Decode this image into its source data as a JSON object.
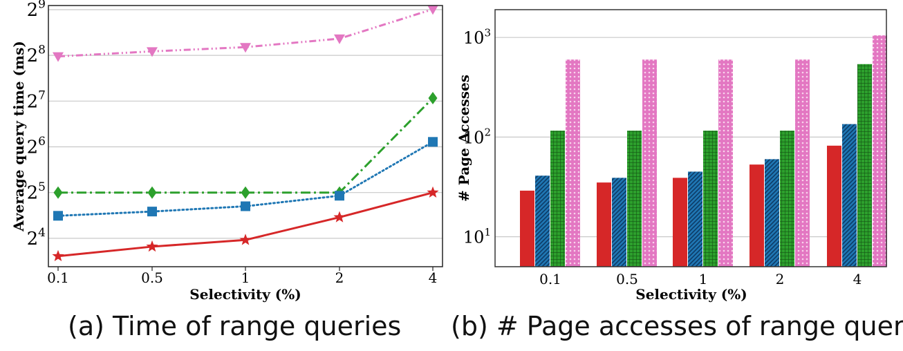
{
  "captions": {
    "a": "(a) Time of range queries",
    "b": "(b) # Page accesses of range queries"
  },
  "colors": {
    "red": "#d62728",
    "blue": "#1f77b4",
    "green": "#2ca02c",
    "pink": "#e377c2"
  },
  "chart_data": [
    {
      "type": "line",
      "xlabel": "Selectivity (%)",
      "ylabel": "Average query time (ms)",
      "x": [
        "0.1",
        "0.5",
        "1",
        "2",
        "4"
      ],
      "yscale": "log2",
      "ylim": [
        10.4,
        545
      ],
      "yticks": [
        {
          "base": "2",
          "exp": "4",
          "value": 16
        },
        {
          "base": "2",
          "exp": "5",
          "value": 32
        },
        {
          "base": "2",
          "exp": "6",
          "value": 64
        },
        {
          "base": "2",
          "exp": "7",
          "value": 128
        },
        {
          "base": "2",
          "exp": "8",
          "value": 256
        },
        {
          "base": "2",
          "exp": "9",
          "value": 512
        }
      ],
      "grid": true,
      "series": [
        {
          "color": "#e377c2",
          "marker": "triangle-down",
          "line": "dash-dot-dot",
          "values": [
            252,
            272,
            290,
            330,
            515
          ]
        },
        {
          "color": "#2ca02c",
          "marker": "diamond",
          "line": "dash-dot",
          "values": [
            32,
            32,
            32,
            32,
            134
          ]
        },
        {
          "color": "#1f77b4",
          "marker": "square",
          "line": "dotted",
          "values": [
            22.5,
            24,
            26,
            30.5,
            69
          ]
        },
        {
          "color": "#d62728",
          "marker": "star",
          "line": "solid",
          "values": [
            12.2,
            14.1,
            15.6,
            22,
            32
          ]
        }
      ]
    },
    {
      "type": "bar",
      "xlabel": "Selectivity (%)",
      "ylabel": "# Page Accesses",
      "categories": [
        "0.1",
        "0.5",
        "1",
        "2",
        "4"
      ],
      "yscale": "log10",
      "ylim": [
        5,
        1900
      ],
      "yticks": [
        {
          "base": "10",
          "exp": "1",
          "value": 10
        },
        {
          "base": "10",
          "exp": "2",
          "value": 100
        },
        {
          "base": "10",
          "exp": "3",
          "value": 1000
        }
      ],
      "grid": true,
      "series": [
        {
          "color": "#d62728",
          "pattern": "solid",
          "values": [
            29,
            35,
            39,
            53,
            82
          ]
        },
        {
          "color": "#1f77b4",
          "pattern": "hatch",
          "values": [
            41,
            39,
            45,
            60,
            135
          ]
        },
        {
          "color": "#2ca02c",
          "pattern": "grid",
          "values": [
            116,
            116,
            116,
            116,
            540
          ]
        },
        {
          "color": "#e377c2",
          "pattern": "dots",
          "values": [
            600,
            600,
            600,
            600,
            1050
          ]
        }
      ]
    }
  ]
}
